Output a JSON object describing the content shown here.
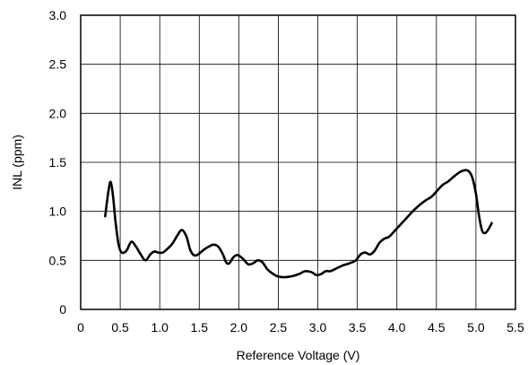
{
  "chart_data": {
    "type": "line",
    "title": "",
    "xlabel": "Reference Voltage (V)",
    "ylabel": "INL (ppm)",
    "xlim": [
      0,
      5.5
    ],
    "ylim": [
      0,
      3.0
    ],
    "x_ticks": [
      0,
      0.5,
      1.0,
      1.5,
      2.0,
      2.5,
      3.0,
      3.5,
      4.0,
      4.5,
      5.0,
      5.5
    ],
    "x_tick_labels": [
      "0",
      "0.5",
      "1.0",
      "1.5",
      "2.0",
      "2.5",
      "3.0",
      "3.5",
      "4.0",
      "4.5",
      "5.0",
      "5.5"
    ],
    "y_ticks": [
      0,
      0.5,
      1.0,
      1.5,
      2.0,
      2.5,
      3.0
    ],
    "y_tick_labels": [
      "0",
      "0.5",
      "1.0",
      "1.5",
      "2.0",
      "2.5",
      "3.0"
    ],
    "grid": true,
    "legend": "none",
    "line_color": "#000000",
    "series": [
      {
        "x": [
          0.31,
          0.35,
          0.38,
          0.41,
          0.44,
          0.48,
          0.52,
          0.58,
          0.64,
          0.7,
          0.76,
          0.82,
          0.88,
          0.93,
          0.98,
          1.04,
          1.1,
          1.16,
          1.22,
          1.28,
          1.34,
          1.38,
          1.42,
          1.46,
          1.5,
          1.56,
          1.62,
          1.68,
          1.74,
          1.8,
          1.84,
          1.88,
          1.92,
          1.96,
          2.0,
          2.06,
          2.12,
          2.18,
          2.24,
          2.3,
          2.36,
          2.42,
          2.48,
          2.54,
          2.6,
          2.68,
          2.76,
          2.84,
          2.92,
          2.98,
          3.04,
          3.1,
          3.16,
          3.24,
          3.32,
          3.4,
          3.48,
          3.54,
          3.6,
          3.66,
          3.72,
          3.78,
          3.84,
          3.9,
          3.96,
          4.04,
          4.12,
          4.2,
          4.28,
          4.36,
          4.44,
          4.52,
          4.58,
          4.64,
          4.7,
          4.76,
          4.82,
          4.88,
          4.92,
          4.96,
          5.0,
          5.04,
          5.08,
          5.12,
          5.16,
          5.2
        ],
        "y": [
          0.95,
          1.2,
          1.3,
          1.15,
          0.9,
          0.66,
          0.58,
          0.6,
          0.69,
          0.64,
          0.56,
          0.5,
          0.56,
          0.59,
          0.58,
          0.58,
          0.62,
          0.67,
          0.75,
          0.81,
          0.74,
          0.62,
          0.56,
          0.55,
          0.57,
          0.61,
          0.64,
          0.66,
          0.64,
          0.56,
          0.48,
          0.47,
          0.52,
          0.55,
          0.55,
          0.51,
          0.46,
          0.47,
          0.5,
          0.48,
          0.41,
          0.37,
          0.34,
          0.33,
          0.33,
          0.34,
          0.36,
          0.39,
          0.38,
          0.35,
          0.36,
          0.39,
          0.39,
          0.42,
          0.45,
          0.47,
          0.5,
          0.56,
          0.58,
          0.56,
          0.6,
          0.68,
          0.72,
          0.74,
          0.79,
          0.86,
          0.93,
          1.0,
          1.06,
          1.11,
          1.15,
          1.22,
          1.27,
          1.3,
          1.34,
          1.38,
          1.41,
          1.42,
          1.4,
          1.33,
          1.18,
          0.95,
          0.8,
          0.78,
          0.82,
          0.88
        ]
      }
    ]
  }
}
